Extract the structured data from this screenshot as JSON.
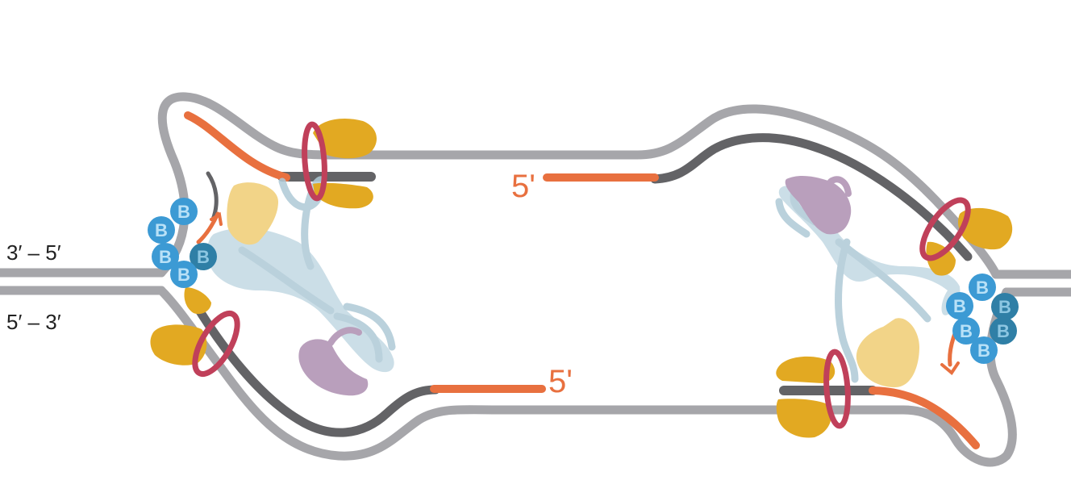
{
  "labels": {
    "top_strand": "3′ – 5′",
    "bottom_strand": "5′ – 3′",
    "five_prime_top": "5'",
    "five_prime_bottom": "5'",
    "protein_letter": "B"
  },
  "colors": {
    "parental_dna": "#a6a6aa",
    "new_dna": "#636366",
    "rna_primer": "#e8703f",
    "helicase_ring": "#c0405a",
    "polymerase": "#e2a922",
    "polymerase_light": "#f0cd74",
    "clamp_loader": "#aec9d6",
    "clamp_loader_purple": "#ad8fb1",
    "ssb_blue": "#3c9ad4",
    "ssb_blue_dark": "#2f7fa6",
    "ssb_letter": "#b9e1f7"
  }
}
